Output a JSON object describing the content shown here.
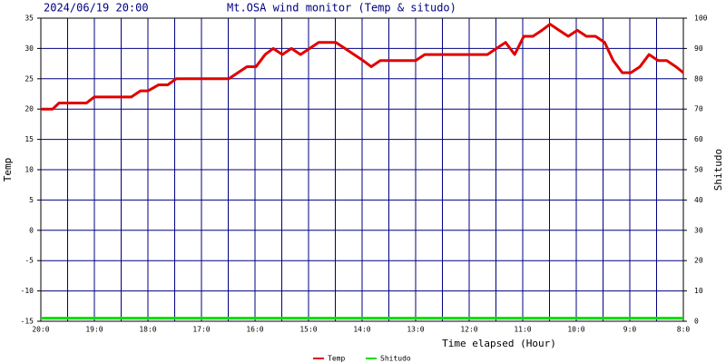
{
  "chart_data": {
    "type": "line",
    "title": "Mt.OSA wind monitor (Temp & situdo)",
    "subtitle": "2024/06/19 20:00",
    "x_label": "Time elapsed (Hour)",
    "y_label": "Temp",
    "y2_label": "Shitudo",
    "xlim": [
      0,
      12
    ],
    "xticks": [
      {
        "value": 0,
        "label": "20:0"
      },
      {
        "value": 1,
        "label": "19:0"
      },
      {
        "value": 2,
        "label": "18:0"
      },
      {
        "value": 3,
        "label": "17:0"
      },
      {
        "value": 4,
        "label": "16:0"
      },
      {
        "value": 5,
        "label": "15:0"
      },
      {
        "value": 6,
        "label": "14:0"
      },
      {
        "value": 7,
        "label": "13:0"
      },
      {
        "value": 8,
        "label": "12:0"
      },
      {
        "value": 9,
        "label": "11:0"
      },
      {
        "value": 10,
        "label": "10:0"
      },
      {
        "value": 11,
        "label": "9:0"
      },
      {
        "value": 12,
        "label": "8:0"
      }
    ],
    "xminor_ticks": [
      0.5,
      1.5,
      2.5,
      3.5,
      4.5,
      5.5,
      6.5,
      7.5,
      8.5,
      9.5,
      10.5,
      11.5
    ],
    "ylim": [
      -15,
      35
    ],
    "yticks": [
      -15,
      -10,
      -5,
      0,
      5,
      10,
      15,
      20,
      25,
      30,
      35
    ],
    "y2lim": [
      0,
      100
    ],
    "y2ticks": [
      0,
      10,
      20,
      30,
      40,
      50,
      60,
      70,
      80,
      90,
      100
    ],
    "grid": true,
    "grid_color": "#000080",
    "legend": "bottom",
    "series": [
      {
        "name": "Temp",
        "color": "#e00000",
        "x": [
          0,
          0.22,
          0.34,
          0.85,
          1.0,
          1.69,
          1.86,
          2.0,
          2.2,
          2.37,
          2.53,
          3.51,
          3.68,
          3.85,
          4.02,
          4.19,
          4.34,
          4.51,
          4.68,
          4.85,
          5.02,
          5.19,
          5.51,
          5.68,
          5.85,
          6.02,
          6.17,
          6.34,
          7.0,
          7.17,
          8.34,
          8.51,
          8.68,
          8.85,
          9.02,
          9.19,
          9.36,
          9.51,
          9.68,
          9.85,
          10.02,
          10.19,
          10.36,
          10.53,
          10.69,
          10.86,
          11.02,
          11.19,
          11.36,
          11.53,
          11.69,
          11.86,
          12.0
        ],
        "values": [
          20,
          20,
          21,
          21,
          22,
          22,
          23,
          23,
          24,
          24,
          25,
          25,
          26,
          27,
          27,
          29,
          30,
          29,
          30,
          29,
          30,
          31,
          31,
          30,
          29,
          28,
          27,
          28,
          28,
          29,
          29,
          30,
          31,
          29,
          32,
          32,
          33,
          34,
          33,
          32,
          33,
          32,
          32,
          31,
          28,
          26,
          26,
          27,
          29,
          28,
          28,
          27,
          26
        ]
      },
      {
        "name": "Shitudo",
        "color": "#00e000",
        "axis": "y2",
        "x": [
          0,
          12
        ],
        "values": [
          1,
          1
        ]
      }
    ]
  }
}
